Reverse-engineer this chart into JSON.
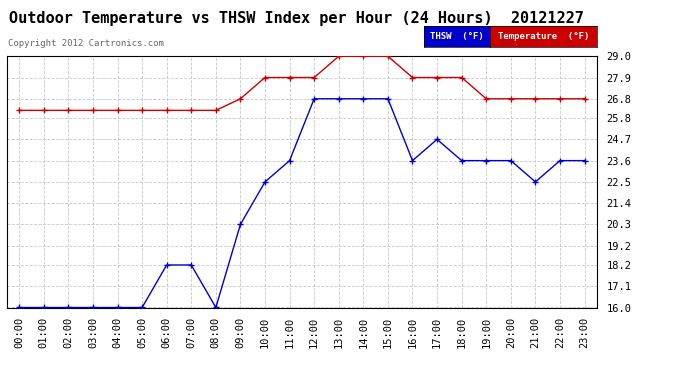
{
  "title": "Outdoor Temperature vs THSW Index per Hour (24 Hours)  20121227",
  "copyright": "Copyright 2012 Cartronics.com",
  "x_labels": [
    "00:00",
    "01:00",
    "02:00",
    "03:00",
    "04:00",
    "05:00",
    "06:00",
    "07:00",
    "08:00",
    "09:00",
    "10:00",
    "11:00",
    "12:00",
    "13:00",
    "14:00",
    "15:00",
    "16:00",
    "17:00",
    "18:00",
    "19:00",
    "20:00",
    "21:00",
    "22:00",
    "23:00"
  ],
  "thsw_data": [
    16.0,
    16.0,
    16.0,
    16.0,
    16.0,
    16.0,
    18.2,
    18.2,
    16.0,
    20.3,
    22.5,
    23.6,
    26.8,
    26.8,
    26.8,
    26.8,
    23.6,
    24.7,
    23.6,
    23.6,
    23.6,
    22.5,
    23.6,
    23.6
  ],
  "temp_data": [
    26.2,
    26.2,
    26.2,
    26.2,
    26.2,
    26.2,
    26.2,
    26.2,
    26.2,
    26.8,
    27.9,
    27.9,
    27.9,
    29.0,
    29.0,
    29.0,
    27.9,
    27.9,
    27.9,
    26.8,
    26.8,
    26.8,
    26.8,
    26.8
  ],
  "thsw_color": "#0000cc",
  "temp_color": "#cc0000",
  "ylim_min": 16.0,
  "ylim_max": 29.0,
  "yticks": [
    16.0,
    17.1,
    18.2,
    19.2,
    20.3,
    21.4,
    22.5,
    23.6,
    24.7,
    25.8,
    26.8,
    27.9,
    29.0
  ],
  "background_color": "#ffffff",
  "grid_color": "#c8c8c8",
  "legend_thsw_bg": "#0000cc",
  "legend_temp_bg": "#cc0000",
  "legend_thsw_text": "THSW  (°F)",
  "legend_temp_text": "Temperature  (°F)",
  "title_fontsize": 11,
  "copyright_fontsize": 6.5,
  "tick_fontsize": 7.5
}
